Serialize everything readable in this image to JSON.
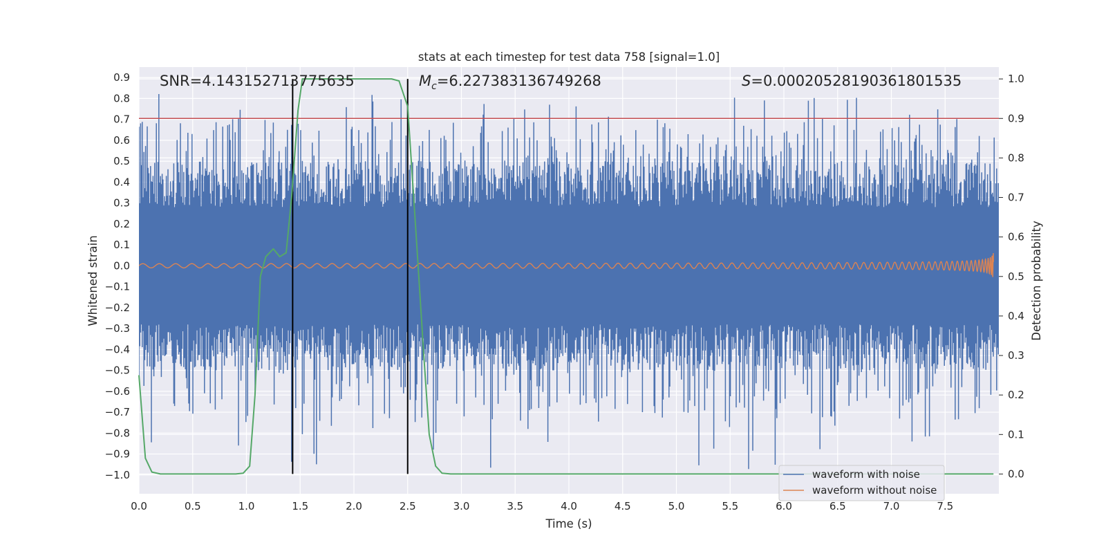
{
  "chart_data": {
    "type": "line",
    "title": "stats at each timestep for test data 758 [signal=1.0]",
    "xlabel": "Time (s)",
    "ylabel_left": "Whitened strain",
    "ylabel_right": "Detection probability",
    "xlim": [
      0.0,
      8.0
    ],
    "ylim_left": [
      -1.09,
      0.95
    ],
    "ylim_right": [
      -0.05,
      1.03
    ],
    "x_ticks": [
      "0.0",
      "0.5",
      "1.0",
      "1.5",
      "2.0",
      "2.5",
      "3.0",
      "3.5",
      "4.0",
      "4.5",
      "5.0",
      "5.5",
      "6.0",
      "6.5",
      "7.0",
      "7.5"
    ],
    "y_left_ticks": [
      "0.9",
      "0.8",
      "0.7",
      "0.6",
      "0.5",
      "0.4",
      "0.3",
      "0.2",
      "0.1",
      "0.0",
      "−0.1",
      "−0.2",
      "−0.3",
      "−0.4",
      "−0.5",
      "−0.6",
      "−0.7",
      "−0.8",
      "−0.9",
      "−1.0"
    ],
    "y_right_ticks": [
      "1.0",
      "0.9",
      "0.8",
      "0.7",
      "0.6",
      "0.5",
      "0.4",
      "0.3",
      "0.2",
      "0.1",
      "0.0"
    ],
    "grid": true,
    "legend_position": "lower-right",
    "annotations": {
      "snr_prefix": "SNR=",
      "snr_value": "4.143152713775635",
      "mc_symbol": "M",
      "mc_subscript": "c",
      "mc_value": "=6.227383136749268",
      "s_symbol": "S",
      "s_value": "=0.00020528190361801535"
    },
    "threshold": {
      "axis": "right",
      "value": 0.9,
      "color": "#c44e52"
    },
    "vertical_markers_x": [
      1.43,
      2.5
    ],
    "series": [
      {
        "name": "waveform with noise",
        "axis": "left",
        "color": "#4c72b0",
        "kind": "noise",
        "typical_envelope": [
          -0.49,
          0.49
        ],
        "peak_max": 0.85,
        "peak_min": -1.0
      },
      {
        "name": "waveform without noise",
        "axis": "left",
        "color": "#dd8452",
        "kind": "chirp",
        "amplitude_start": 0.01,
        "amplitude_end": 0.1,
        "merger_time": 7.95
      },
      {
        "name": "",
        "axis": "right",
        "color": "#55a868",
        "x": [
          0.0,
          0.06,
          0.12,
          0.2,
          0.3,
          0.5,
          0.7,
          0.9,
          0.97,
          1.03,
          1.08,
          1.13,
          1.18,
          1.25,
          1.31,
          1.37,
          1.42,
          1.48,
          1.52,
          1.57,
          1.7,
          2.0,
          2.2,
          2.35,
          2.42,
          2.5,
          2.58,
          2.65,
          2.7,
          2.76,
          2.82,
          2.9,
          3.0,
          4.0,
          5.0,
          6.0,
          7.0,
          7.95
        ],
        "y": [
          0.25,
          0.04,
          0.005,
          0.0,
          0.0,
          0.0,
          0.0,
          0.0,
          0.002,
          0.02,
          0.2,
          0.5,
          0.55,
          0.57,
          0.55,
          0.56,
          0.7,
          0.92,
          1.0,
          1.0,
          1.0,
          1.0,
          1.0,
          1.0,
          0.995,
          0.93,
          0.6,
          0.3,
          0.1,
          0.02,
          0.002,
          0.0,
          0.0,
          0.0,
          0.0,
          0.0,
          0.0,
          0.0
        ]
      }
    ]
  }
}
